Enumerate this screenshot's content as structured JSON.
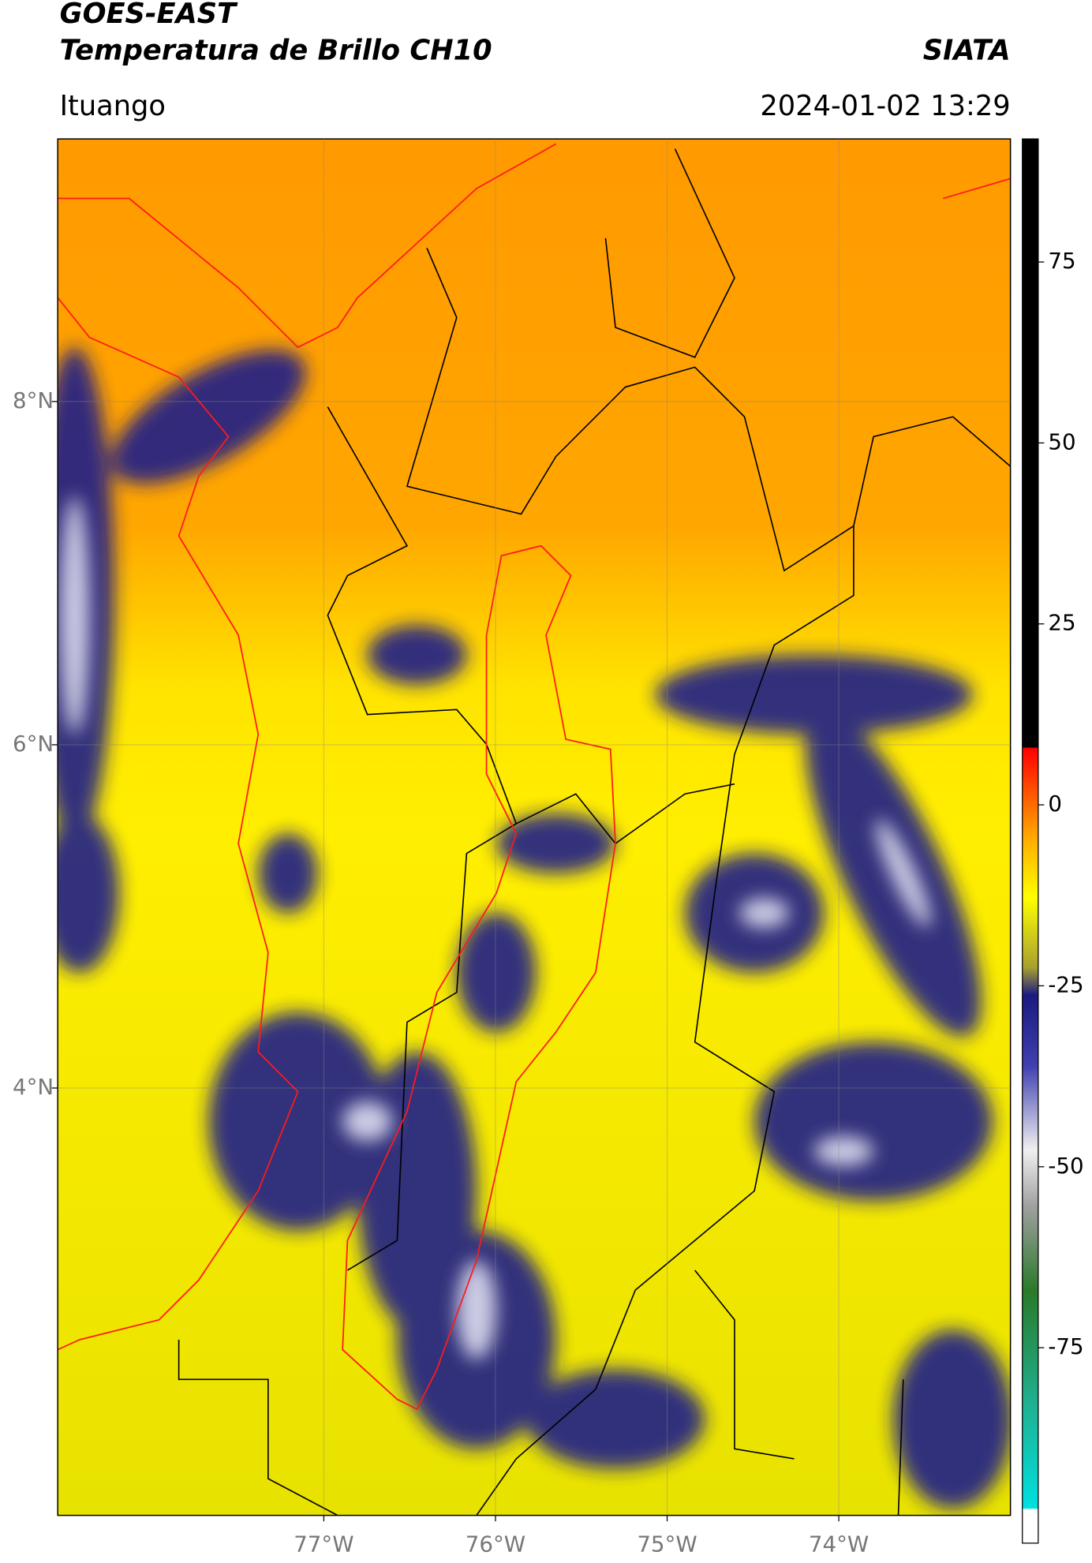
{
  "header": {
    "title": "GOES-EAST",
    "subtitle": "Temperatura de Brillo CH10",
    "agency": "SIATA",
    "location": "Ituango",
    "timestamp": "2024-01-02 13:29"
  },
  "map": {
    "xlim": [
      -78.55,
      -73.0
    ],
    "ylim": [
      1.51,
      9.53
    ],
    "grid": true,
    "xticks": [
      {
        "value": -77,
        "label": "77°W"
      },
      {
        "value": -76,
        "label": "76°W"
      },
      {
        "value": -75,
        "label": "75°W"
      },
      {
        "value": -74,
        "label": "74°W"
      }
    ],
    "yticks": [
      {
        "value": 8,
        "label": "8°N"
      },
      {
        "value": 6,
        "label": "6°N"
      },
      {
        "value": 4,
        "label": "4°N"
      }
    ]
  },
  "colorbar": {
    "lim": [
      -102,
      92
    ],
    "ticks": [
      75,
      50,
      25,
      0,
      -25,
      -50,
      -75
    ]
  }
}
